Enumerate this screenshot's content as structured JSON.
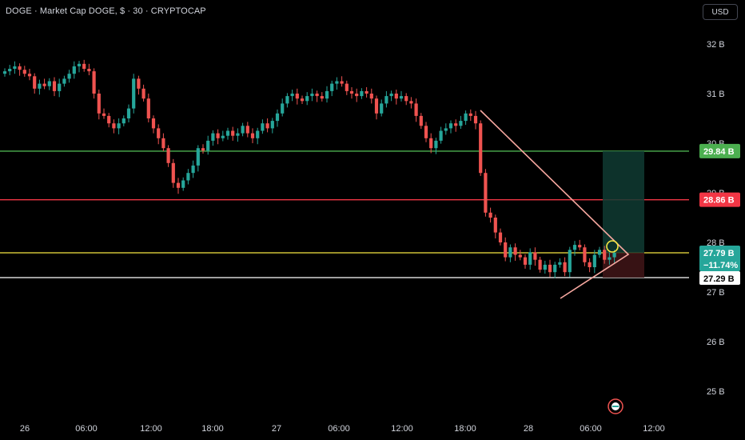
{
  "header": {
    "title": "DOGE · Market Cap DOGE, $ · 30 · CRYPTOCAP",
    "currency_label": "USD"
  },
  "colors": {
    "background": "#000000",
    "up": "#26a69a",
    "down": "#ef5350",
    "support": "#ffffff",
    "current": "#f5e642",
    "resistance": "#f23645",
    "target": "#4caf50",
    "wedge": "#f7a8a0"
  },
  "chart_data": {
    "type": "candlestick",
    "title": "DOGE · Market Cap DOGE, $ · 30 · CRYPTOCAP",
    "ylabel": "",
    "xlabel": "",
    "y_unit": "B",
    "ylim": [
      24.5,
      32.8
    ],
    "y_ticks": [
      "32 B",
      "31 B",
      "30 B",
      "29 B",
      "28 B",
      "27 B",
      "26 B",
      "25 B"
    ],
    "x_ticks": [
      "26",
      "06:00",
      "12:00",
      "18:00",
      "27",
      "06:00",
      "12:00",
      "18:00",
      "28",
      "06:00",
      "12:00"
    ],
    "closes": [
      31.45,
      31.5,
      31.55,
      31.48,
      31.4,
      31.35,
      31.1,
      31.2,
      31.15,
      31.25,
      31.05,
      31.2,
      31.3,
      31.4,
      31.55,
      31.6,
      31.5,
      31.45,
      31.0,
      30.6,
      30.55,
      30.4,
      30.3,
      30.4,
      30.5,
      30.7,
      31.3,
      31.1,
      30.9,
      30.5,
      30.3,
      30.1,
      29.9,
      29.6,
      29.2,
      29.1,
      29.25,
      29.4,
      29.55,
      29.9,
      29.85,
      30.05,
      30.2,
      30.1,
      30.15,
      30.25,
      30.15,
      30.2,
      30.35,
      30.2,
      30.1,
      30.25,
      30.4,
      30.3,
      30.45,
      30.6,
      30.8,
      30.95,
      31.0,
      30.9,
      30.85,
      30.95,
      31.0,
      30.95,
      30.9,
      31.05,
      31.2,
      31.25,
      31.2,
      31.05,
      31.0,
      30.95,
      31.05,
      31.0,
      30.9,
      30.6,
      30.8,
      30.95,
      31.0,
      30.9,
      30.95,
      30.85,
      30.8,
      30.55,
      30.35,
      30.1,
      29.9,
      30.05,
      30.25,
      30.3,
      30.4,
      30.35,
      30.45,
      30.6,
      30.55,
      30.4,
      29.4,
      28.6,
      28.5,
      28.2,
      28.0,
      27.7,
      27.9,
      27.75,
      27.7,
      27.55,
      27.8,
      27.65,
      27.45,
      27.55,
      27.4,
      27.55,
      27.6,
      27.4,
      27.85,
      27.95,
      27.9,
      27.6,
      27.5,
      27.75,
      27.85,
      27.65,
      27.7,
      27.79
    ],
    "horizontal_levels": [
      {
        "value": 29.84,
        "label": "29.84 B",
        "color": "#4caf50"
      },
      {
        "value": 28.86,
        "label": "28.86 B",
        "color": "#f23645"
      },
      {
        "value": 27.79,
        "label": "27.79 B",
        "color": "#f5e642"
      },
      {
        "value": 27.29,
        "label": "27.29 B",
        "color": "#ffffff"
      }
    ],
    "last_price": {
      "value": 27.79,
      "label": "27.79 B",
      "change": "−11.74%"
    },
    "grid": false,
    "legend": "none"
  }
}
